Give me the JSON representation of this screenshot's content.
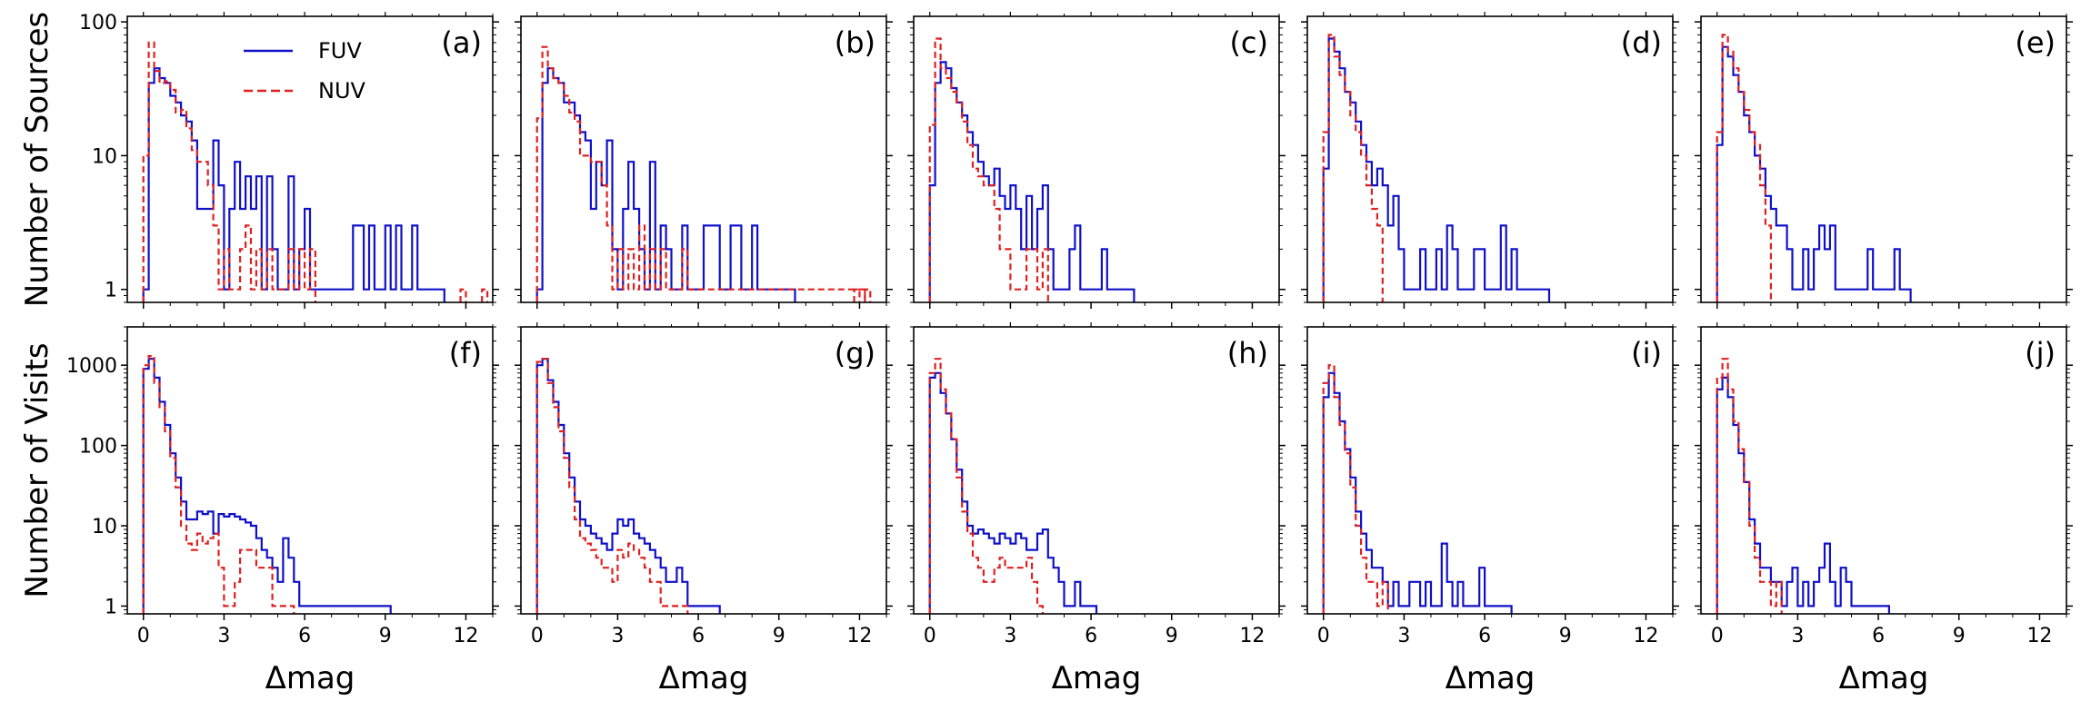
{
  "chart_data": {
    "type": "histogram-grid",
    "rows": [
      {
        "ylabel": "Number of Sources",
        "ylim": [
          0.8,
          110
        ],
        "yticks": [
          1,
          10,
          100
        ],
        "ytick_labels": [
          "1",
          "10",
          "100"
        ]
      },
      {
        "ylabel": "Number of Visits",
        "ylim": [
          0.8,
          3000
        ],
        "yticks": [
          1,
          10,
          100,
          1000
        ],
        "ytick_labels": [
          "1",
          "10",
          "100",
          "1000"
        ]
      }
    ],
    "xlabel": "Δmag",
    "xlim": [
      -0.6,
      13.0
    ],
    "xticks": [
      0,
      3,
      6,
      9,
      12
    ],
    "xtick_labels": [
      "0",
      "3",
      "6",
      "9",
      "12"
    ],
    "bin_width": 0.2,
    "bin_start": 0.0,
    "colors": {
      "FUV": "#1010c8",
      "NUV": "#e02020"
    },
    "legend": [
      {
        "name": "FUV",
        "style": "solid",
        "color": "#1010c8"
      },
      {
        "name": "NUV",
        "style": "dashed",
        "color": "#e02020"
      }
    ],
    "panels": [
      {
        "label": "(a)",
        "row": 0,
        "col": 0,
        "FUV": [
          1,
          35,
          45,
          38,
          35,
          28,
          25,
          20,
          18,
          13,
          4,
          4,
          4,
          13,
          6,
          1,
          4,
          9,
          4,
          7,
          4,
          7,
          1,
          7,
          2,
          1,
          1,
          7,
          1,
          2,
          4,
          1,
          1,
          1,
          1,
          1,
          1,
          1,
          1,
          3,
          3,
          1,
          3,
          1,
          1,
          3,
          1,
          3,
          1,
          1,
          3,
          1,
          1,
          1,
          1,
          1
        ],
        "NUV": [
          10,
          70,
          43,
          35,
          36,
          31,
          21,
          22,
          16,
          11,
          9,
          9,
          6,
          3,
          1,
          2,
          1,
          1,
          2,
          3,
          1,
          2,
          1,
          2,
          1,
          1,
          1,
          2,
          1,
          2,
          1,
          2
        ],
        "NUV_tail": [
          [
            11.8,
            1
          ],
          [
            12.6,
            1
          ]
        ]
      },
      {
        "label": "(b)",
        "row": 0,
        "col": 1,
        "FUV": [
          1,
          35,
          45,
          38,
          35,
          25,
          25,
          20,
          15,
          13,
          4,
          9,
          6,
          13,
          2,
          1,
          4,
          9,
          4,
          2,
          1,
          9,
          1,
          3,
          2,
          1,
          1,
          3,
          1,
          1,
          1,
          3,
          3,
          3,
          1,
          1,
          3,
          3,
          1,
          1,
          3,
          1,
          1,
          1,
          1,
          1,
          1,
          1
        ],
        "NUV": [
          19,
          65,
          45,
          38,
          35,
          28,
          21,
          18,
          10,
          10,
          9,
          9,
          6,
          3,
          1,
          2,
          1,
          2,
          1,
          3,
          1,
          2,
          1,
          2,
          1,
          1,
          1,
          2,
          1,
          1,
          1,
          1,
          1,
          1,
          1,
          1,
          1,
          1,
          1,
          1,
          1,
          1,
          1,
          1,
          1,
          1,
          1,
          1,
          1,
          1,
          1,
          1,
          1,
          1,
          1,
          1,
          1,
          1,
          1,
          1,
          1
        ],
        "NUV_tail": [
          [
            11.8,
            1
          ],
          [
            12.2,
            1
          ]
        ]
      },
      {
        "label": "(c)",
        "row": 0,
        "col": 2,
        "FUV": [
          6,
          35,
          50,
          45,
          32,
          25,
          20,
          15,
          12,
          9,
          7,
          6,
          8,
          5,
          4,
          6,
          4,
          2,
          5,
          2,
          4,
          6,
          2,
          1,
          1,
          1,
          2,
          3,
          1,
          1,
          1,
          1,
          2,
          1,
          1,
          1,
          1,
          1
        ],
        "NUV": [
          17,
          75,
          45,
          38,
          30,
          25,
          18,
          12,
          8,
          7,
          6,
          6,
          4,
          2,
          2,
          1,
          1,
          1,
          2,
          2,
          1,
          2
        ],
        "NUV_tail": []
      },
      {
        "label": "(d)",
        "row": 0,
        "col": 3,
        "FUV": [
          8,
          75,
          60,
          45,
          30,
          25,
          18,
          12,
          9,
          6,
          8,
          6,
          3,
          5,
          2,
          1,
          1,
          1,
          2,
          1,
          1,
          2,
          1,
          3,
          2,
          1,
          1,
          1,
          2,
          2,
          1,
          1,
          1,
          3,
          1,
          2,
          1,
          1,
          1,
          1,
          1,
          1
        ],
        "NUV": [
          15,
          80,
          55,
          40,
          30,
          20,
          15,
          10,
          6,
          4,
          3
        ],
        "NUV_tail": []
      },
      {
        "label": "(e)",
        "row": 0,
        "col": 4,
        "FUV": [
          12,
          65,
          55,
          40,
          30,
          20,
          15,
          10,
          8,
          5,
          4,
          3,
          3,
          2,
          1,
          1,
          2,
          1,
          2,
          3,
          2,
          3,
          1,
          1,
          1,
          1,
          1,
          1,
          2,
          1,
          1,
          1,
          1,
          2,
          1,
          1
        ],
        "NUV": [
          15,
          80,
          60,
          45,
          30,
          22,
          15,
          12,
          6,
          3
        ],
        "NUV_tail": []
      },
      {
        "label": "(f)",
        "row": 1,
        "col": 0,
        "FUV": [
          900,
          1200,
          700,
          350,
          180,
          80,
          40,
          20,
          12,
          12,
          15,
          14,
          15,
          8,
          14,
          13,
          14,
          13,
          12,
          11,
          10,
          7,
          5,
          4,
          3,
          2,
          7,
          4,
          2,
          1,
          1,
          1,
          1,
          1,
          1,
          1,
          1,
          1,
          1,
          1,
          1,
          1,
          1,
          1,
          1,
          1
        ],
        "NUV": [
          1000,
          1300,
          600,
          300,
          150,
          70,
          30,
          10,
          6,
          5,
          8,
          6,
          7,
          8,
          3,
          1,
          1,
          2,
          5,
          5,
          5,
          3,
          3,
          3,
          1,
          1,
          1,
          1
        ],
        "NUV_tail": []
      },
      {
        "label": "(g)",
        "row": 1,
        "col": 1,
        "FUV": [
          1000,
          1200,
          650,
          350,
          180,
          80,
          40,
          20,
          12,
          10,
          8,
          7,
          6,
          5,
          8,
          12,
          10,
          12,
          8,
          7,
          6,
          5,
          4,
          3,
          2,
          2,
          3,
          2,
          1,
          1,
          1,
          1,
          1,
          1
        ],
        "NUV": [
          1100,
          1200,
          600,
          300,
          150,
          70,
          30,
          12,
          7,
          6,
          5,
          4,
          3,
          3,
          2,
          5,
          4,
          6,
          5,
          4,
          3,
          2,
          2,
          1,
          1,
          1,
          1,
          1
        ],
        "NUV_tail": []
      },
      {
        "label": "(h)",
        "row": 1,
        "col": 2,
        "FUV": [
          700,
          800,
          450,
          250,
          120,
          50,
          20,
          10,
          8,
          9,
          8,
          7,
          6,
          8,
          7,
          6,
          8,
          7,
          5,
          5,
          8,
          9,
          4,
          3,
          2,
          1,
          1,
          2,
          1,
          1,
          1
        ],
        "NUV": [
          800,
          1200,
          500,
          250,
          120,
          40,
          15,
          8,
          4,
          3,
          2,
          2,
          3,
          4,
          3,
          3,
          3,
          3,
          4,
          2,
          1
        ],
        "NUV_tail": []
      },
      {
        "label": "(i)",
        "row": 1,
        "col": 3,
        "FUV": [
          400,
          800,
          450,
          200,
          90,
          40,
          15,
          8,
          5,
          3,
          3,
          2,
          1,
          2,
          1,
          1,
          2,
          2,
          1,
          2,
          1,
          1,
          6,
          2,
          1,
          2,
          1,
          1,
          1,
          3,
          1,
          1,
          1,
          1,
          1
        ],
        "NUV": [
          600,
          1000,
          400,
          180,
          80,
          30,
          10,
          4,
          2,
          2,
          1,
          2
        ],
        "NUV_tail": []
      },
      {
        "label": "(j)",
        "row": 1,
        "col": 4,
        "FUV": [
          500,
          700,
          400,
          180,
          80,
          35,
          12,
          6,
          3,
          3,
          2,
          2,
          1,
          2,
          3,
          1,
          2,
          1,
          2,
          3,
          6,
          2,
          1,
          3,
          2,
          1,
          1,
          1,
          1,
          1,
          1,
          1
        ],
        "NUV": [
          700,
          1200,
          500,
          200,
          90,
          35,
          10,
          4,
          2,
          2,
          1,
          2
        ],
        "NUV_tail": []
      }
    ]
  }
}
